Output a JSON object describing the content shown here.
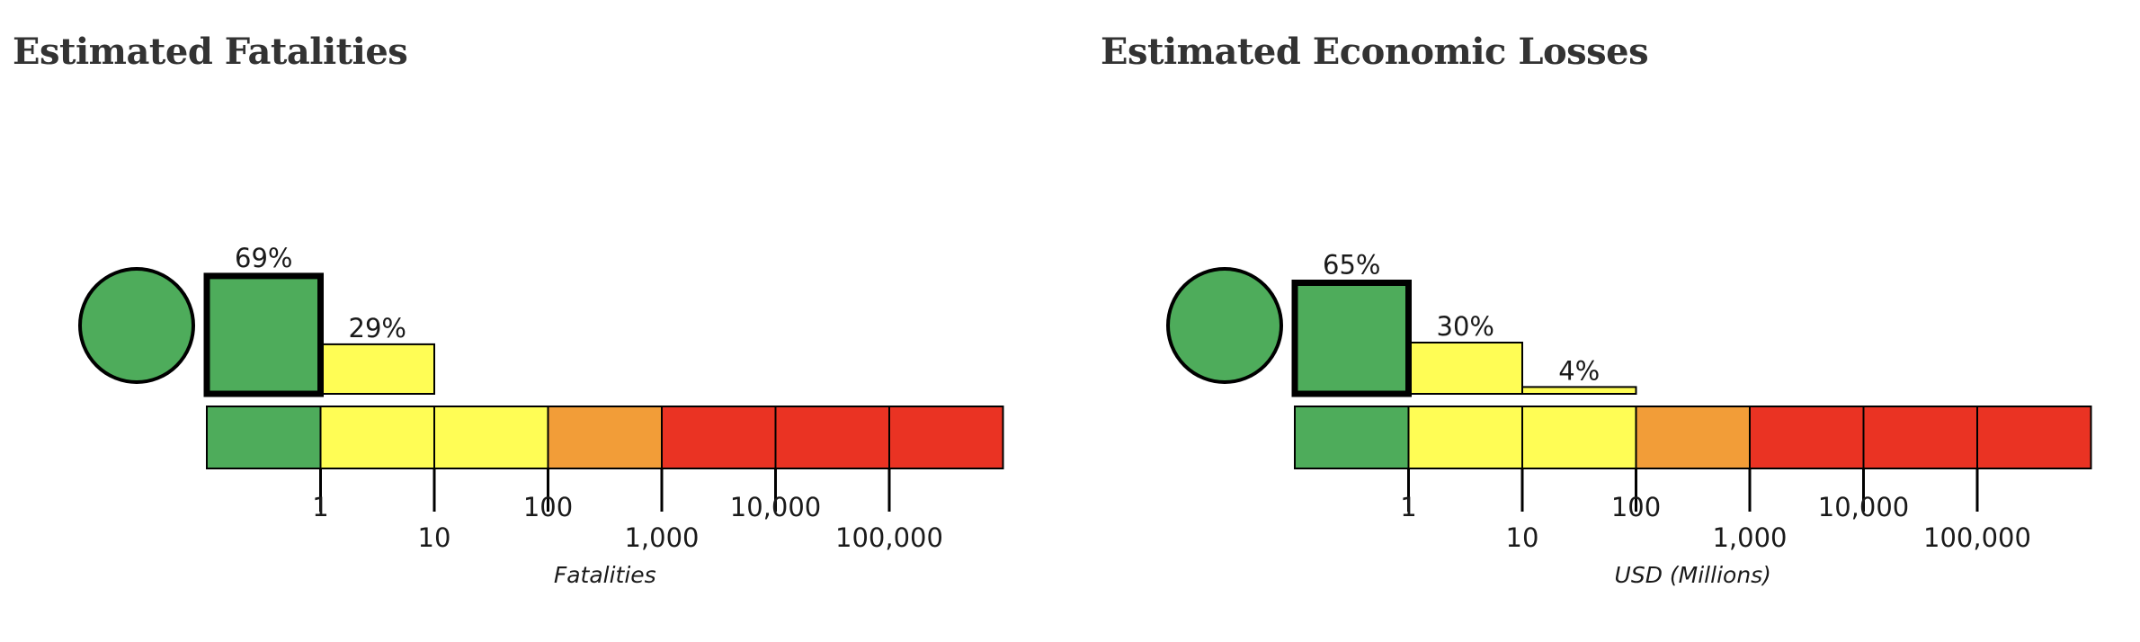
{
  "colors": {
    "green": "#4eac5b",
    "yellow": "#fffd55",
    "orange": "#f29d38",
    "red": "#ea3323",
    "border": "#000000"
  },
  "chart_data": [
    {
      "type": "bar",
      "title": "Estimated Fatalities",
      "xlabel": "Fatalities",
      "alert_level_color": "green",
      "scale_colors": [
        "green",
        "yellow",
        "yellow",
        "orange",
        "red",
        "red",
        "red"
      ],
      "ticks": [
        "1",
        "10",
        "100",
        "1,000",
        "10,000",
        "100,000"
      ],
      "bins": [
        "0",
        "1-10",
        "10-100",
        "100-1,000",
        "1,000-10,000",
        "10,000-100,000",
        "100,000+"
      ],
      "values": [
        69,
        29,
        0,
        0,
        0,
        0,
        0
      ],
      "labels": [
        "69%",
        "29%"
      ],
      "highlight_bin": 0
    },
    {
      "type": "bar",
      "title": "Estimated Economic Losses",
      "xlabel": "USD (Millions)",
      "alert_level_color": "green",
      "scale_colors": [
        "green",
        "yellow",
        "yellow",
        "orange",
        "red",
        "red",
        "red"
      ],
      "ticks": [
        "1",
        "10",
        "100",
        "1,000",
        "10,000",
        "100,000"
      ],
      "bins": [
        "0",
        "1-10",
        "10-100",
        "100-1,000",
        "1,000-10,000",
        "10,000-100,000",
        "100,000+"
      ],
      "values": [
        65,
        30,
        4,
        0,
        0,
        0,
        0
      ],
      "labels": [
        "65%",
        "30%",
        "4%"
      ],
      "highlight_bin": 0
    }
  ]
}
